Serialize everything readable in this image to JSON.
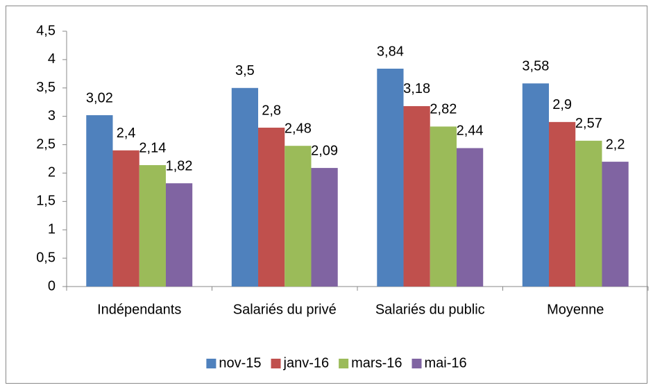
{
  "chart_data": {
    "type": "bar",
    "categories": [
      "Indépendants",
      "Salariés du privé",
      "Salariés du public",
      "Moyenne"
    ],
    "series": [
      {
        "name": "nov-15",
        "color": "#4f81bd",
        "values": [
          3.02,
          3.5,
          3.84,
          3.58
        ],
        "value_labels": [
          "3,02",
          "3,5",
          "3,84",
          "3,58"
        ]
      },
      {
        "name": "janv-16",
        "color": "#c0504d",
        "values": [
          2.4,
          2.8,
          3.18,
          2.9
        ],
        "value_labels": [
          "2,4",
          "2,8",
          "3,18",
          "2,9"
        ]
      },
      {
        "name": "mars-16",
        "color": "#9bbb59",
        "values": [
          2.14,
          2.48,
          2.82,
          2.57
        ],
        "value_labels": [
          "2,14",
          "2,48",
          "2,82",
          "2,57"
        ]
      },
      {
        "name": "mai-16",
        "color": "#8064a2",
        "values": [
          1.82,
          2.09,
          2.44,
          2.2
        ],
        "value_labels": [
          "1,82",
          "2,09",
          "2,44",
          "2,2"
        ]
      }
    ],
    "ylim": [
      0,
      4.5
    ],
    "yticks": [
      0,
      {
        "value": 0.5,
        "label": "0,5"
      },
      1,
      {
        "value": 1.5,
        "label": "1,5"
      },
      2,
      {
        "value": 2.5,
        "label": "2,5"
      },
      3,
      {
        "value": 3.5,
        "label": "3,5"
      },
      4,
      {
        "value": 4.5,
        "label": "4,5"
      }
    ],
    "grid": false,
    "legend": "bottom"
  }
}
